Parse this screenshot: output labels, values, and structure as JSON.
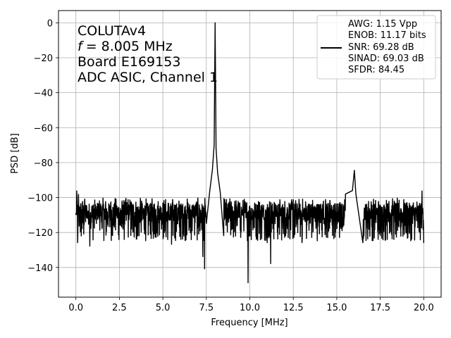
{
  "chart_data": {
    "type": "line",
    "xlabel": "Frequency [MHz]",
    "ylabel": "PSD [dB]",
    "xlim": [
      -1.0,
      21.0
    ],
    "ylim": [
      -157,
      7
    ],
    "x_ticks": [
      0,
      2.5,
      5,
      7.5,
      10,
      12.5,
      15,
      17.5,
      20
    ],
    "x_tick_labels": [
      "0.0",
      "2.5",
      "5.0",
      "7.5",
      "10.0",
      "12.5",
      "15.0",
      "17.5",
      "20.0"
    ],
    "y_ticks": [
      0,
      -20,
      -40,
      -60,
      -80,
      -100,
      -120,
      -140
    ],
    "y_tick_labels": [
      "0",
      "−20",
      "−40",
      "−60",
      "−80",
      "−100",
      "−120",
      "−140"
    ],
    "grid": true,
    "annotation_lines": [
      "COLUTAv4",
      "= 8.005 MHz",
      "Board E169153",
      "ADC ASIC, Channel 1"
    ],
    "annotation_f_symbol": "f",
    "legend": {
      "placement": "top-right",
      "lines": [
        "AWG: 1.15 Vpp",
        "ENOB: 11.17 bits",
        "SNR: 69.28 dB",
        "SINAD: 69.03 dB",
        "SFDR: 84.45"
      ]
    },
    "series": [
      {
        "color": "#000000",
        "noise_floor_db": -112,
        "noise_band_db": [
          -125,
          -100
        ],
        "features": [
          {
            "x": 8.005,
            "y": 0,
            "label": "fundamental"
          },
          {
            "x": 16.01,
            "y": -84.5,
            "label": "second harmonic"
          }
        ],
        "points": [
          [
            0.0,
            -110
          ],
          [
            0.05,
            -96
          ],
          [
            0.1,
            -126
          ],
          [
            0.15,
            -98
          ],
          [
            0.2,
            -112
          ],
          [
            0.5,
            -102
          ],
          [
            0.8,
            -128
          ],
          [
            1.0,
            -104
          ],
          [
            1.5,
            -118
          ],
          [
            2.0,
            -103
          ],
          [
            2.5,
            -116
          ],
          [
            3.0,
            -101
          ],
          [
            3.5,
            -124
          ],
          [
            4.0,
            -105
          ],
          [
            4.5,
            -121
          ],
          [
            5.0,
            -103
          ],
          [
            5.5,
            -127
          ],
          [
            6.0,
            -104
          ],
          [
            6.5,
            -119
          ],
          [
            7.0,
            -102
          ],
          [
            7.3,
            -134
          ],
          [
            7.4,
            -141
          ],
          [
            7.5,
            -115
          ],
          [
            7.7,
            -96
          ],
          [
            7.85,
            -84
          ],
          [
            7.95,
            -70
          ],
          [
            8.005,
            0
          ],
          [
            8.06,
            -72
          ],
          [
            8.15,
            -86
          ],
          [
            8.3,
            -97
          ],
          [
            8.5,
            -122
          ],
          [
            9.0,
            -105
          ],
          [
            9.5,
            -120
          ],
          [
            9.85,
            -116
          ],
          [
            9.9,
            -149
          ],
          [
            9.95,
            -118
          ],
          [
            10.5,
            -102
          ],
          [
            11.0,
            -126
          ],
          [
            11.2,
            -138
          ],
          [
            11.5,
            -104
          ],
          [
            12.0,
            -123
          ],
          [
            12.5,
            -101
          ],
          [
            13.0,
            -126
          ],
          [
            13.5,
            -104
          ],
          [
            14.0,
            -121
          ],
          [
            14.5,
            -103
          ],
          [
            15.0,
            -118
          ],
          [
            15.5,
            -98
          ],
          [
            15.9,
            -96
          ],
          [
            16.01,
            -84.5
          ],
          [
            16.1,
            -98
          ],
          [
            16.5,
            -126
          ],
          [
            17.0,
            -104
          ],
          [
            17.5,
            -122
          ],
          [
            18.0,
            -102
          ],
          [
            18.5,
            -119
          ],
          [
            19.0,
            -103
          ],
          [
            19.5,
            -117
          ],
          [
            19.9,
            -96
          ],
          [
            20.0,
            -126
          ]
        ]
      }
    ]
  }
}
